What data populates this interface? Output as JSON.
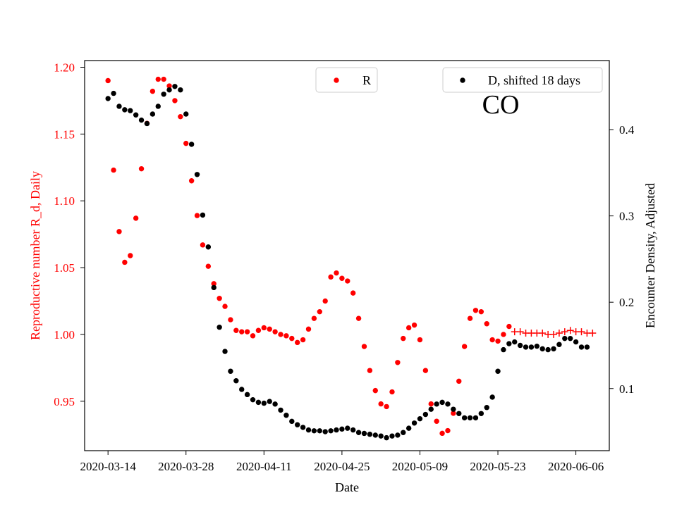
{
  "chart_data": {
    "type": "scatter",
    "title": "CO",
    "xlabel": "Date",
    "ylabel_left": "Reproductive number R_d, Daily",
    "ylabel_right": "Encounter Density, Adjusted",
    "x_start_day": 0,
    "x_ticks": [
      {
        "day": 0,
        "label": "2020-03-14"
      },
      {
        "day": 14,
        "label": "2020-03-28"
      },
      {
        "day": 28,
        "label": "2020-04-11"
      },
      {
        "day": 42,
        "label": "2020-04-25"
      },
      {
        "day": 56,
        "label": "2020-05-09"
      },
      {
        "day": 70,
        "label": "2020-05-23"
      },
      {
        "day": 84,
        "label": "2020-06-06"
      }
    ],
    "xlim": [
      -4.2,
      90
    ],
    "ylim_left": [
      0.913,
      1.205
    ],
    "yticks_left": [
      "0.95",
      "1.00",
      "1.05",
      "1.10",
      "1.15",
      "1.20"
    ],
    "ylim_right": [
      0.028,
      0.48
    ],
    "yticks_right": [
      "0.1",
      "0.2",
      "0.3",
      "0.4"
    ],
    "colors": {
      "R": "#ff0000",
      "D": "#000000",
      "forecast": "#ff0000"
    },
    "legend": [
      {
        "name": "R",
        "position": "upper-center"
      },
      {
        "name": "D, shifted 18 days",
        "position": "upper-right"
      }
    ],
    "series": [
      {
        "name": "R",
        "axis": "left",
        "marker": "dot",
        "start_day": 0,
        "values": [
          1.19,
          1.123,
          1.077,
          1.054,
          1.059,
          1.087,
          1.124,
          1.158,
          1.182,
          1.191,
          1.191,
          1.186,
          1.175,
          1.163,
          1.143,
          1.115,
          1.089,
          1.067,
          1.051,
          1.038,
          1.027,
          1.021,
          1.011,
          1.003,
          1.002,
          1.002,
          0.999,
          1.003,
          1.005,
          1.004,
          1.002,
          1.0,
          0.999,
          0.997,
          0.994,
          0.996,
          1.004,
          1.012,
          1.017,
          1.025,
          1.043,
          1.046,
          1.042,
          1.04,
          1.031,
          1.012,
          0.991,
          0.973,
          0.958,
          0.948,
          0.946,
          0.957,
          0.979,
          0.997,
          1.005,
          1.007,
          0.996,
          0.973,
          0.948,
          0.935,
          0.926,
          0.928,
          0.941,
          0.965,
          0.991,
          1.012,
          1.018,
          1.017,
          1.008,
          0.996,
          0.995,
          1.0,
          1.006
        ]
      },
      {
        "name": "D, shifted 18 days",
        "axis": "right",
        "marker": "dot",
        "start_day": 0,
        "values": [
          0.436,
          0.442,
          0.427,
          0.423,
          0.422,
          0.417,
          0.411,
          0.407,
          0.418,
          0.427,
          0.441,
          0.446,
          0.45,
          0.446,
          0.418,
          0.383,
          0.348,
          0.301,
          0.264,
          0.217,
          0.171,
          0.143,
          0.12,
          0.109,
          0.099,
          0.093,
          0.087,
          0.084,
          0.083,
          0.085,
          0.082,
          0.075,
          0.069,
          0.062,
          0.058,
          0.055,
          0.052,
          0.051,
          0.051,
          0.05,
          0.051,
          0.052,
          0.053,
          0.054,
          0.052,
          0.049,
          0.048,
          0.047,
          0.046,
          0.045,
          0.043,
          0.045,
          0.046,
          0.049,
          0.054,
          0.06,
          0.065,
          0.07,
          0.076,
          0.082,
          0.084,
          0.082,
          0.076,
          0.071,
          0.066,
          0.066,
          0.066,
          0.071,
          0.078,
          0.09,
          0.12,
          0.145,
          0.152,
          0.154,
          0.15,
          0.148,
          0.148,
          0.149,
          0.146,
          0.145,
          0.146,
          0.151,
          0.158,
          0.158,
          0.154,
          0.148,
          0.148
        ]
      },
      {
        "name": "R forecast",
        "axis": "left",
        "marker": "plus",
        "start_day": 73,
        "values": [
          1.002,
          1.002,
          1.001,
          1.001,
          1.001,
          1.001,
          1.0,
          1.0,
          1.001,
          1.002,
          1.003,
          1.002,
          1.002,
          1.001,
          1.001
        ]
      }
    ]
  }
}
